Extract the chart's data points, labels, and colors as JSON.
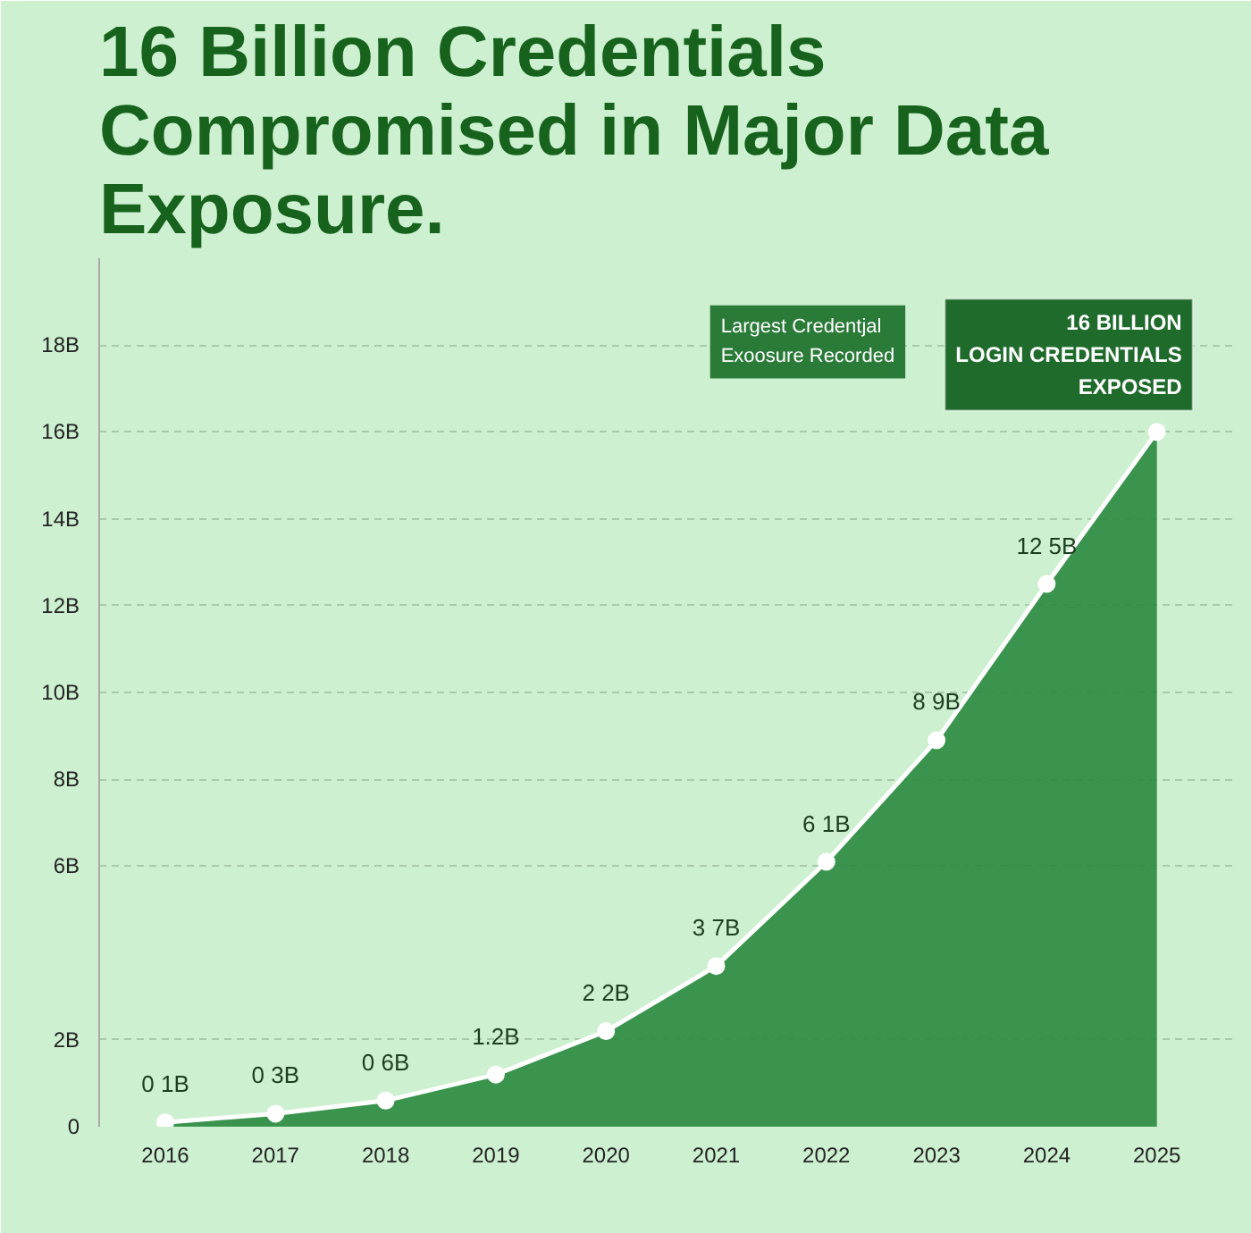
{
  "chart_data": {
    "type": "area",
    "title": "16 Billion Credentials Compromised in Major Data Exposure.",
    "categories": [
      "2016",
      "2017",
      "2018",
      "2019",
      "2020",
      "2021",
      "2022",
      "2023",
      "2024",
      "2025"
    ],
    "series": [
      {
        "color": "#2a8a3e",
        "values": [
          0.1,
          0.3,
          0.6,
          1.2,
          2.2,
          3.7,
          6.1,
          8.9,
          12.5,
          16
        ]
      }
    ],
    "value_labels": [
      "0 1B",
      "0 3B",
      "0 6B",
      "1.2B",
      "2 2B",
      "3 7B",
      "6 1B",
      "8 9B",
      "12 5B",
      null
    ],
    "ylim": [
      0,
      20
    ],
    "yticks": [
      0,
      {
        "value": 2,
        "label": "2B"
      },
      {
        "value": 6,
        "label": "6B"
      },
      {
        "value": 8,
        "label": "8B"
      },
      {
        "value": 10,
        "label": "10B"
      },
      {
        "value": 12,
        "label": "12B"
      },
      {
        "value": 14,
        "label": "14B"
      },
      {
        "value": 16,
        "label": "16B"
      },
      {
        "value": 18,
        "label": "18B"
      }
    ],
    "annotations": [
      {
        "text": "16 BILLION\nLOGIN CREDENTIALS\nEXPOSED",
        "x": "2025",
        "y": 16
      },
      "Largest Credentjal\nExoosure Recorded"
    ],
    "grid": "y",
    "marker": "circle",
    "line_style": "solid"
  }
}
